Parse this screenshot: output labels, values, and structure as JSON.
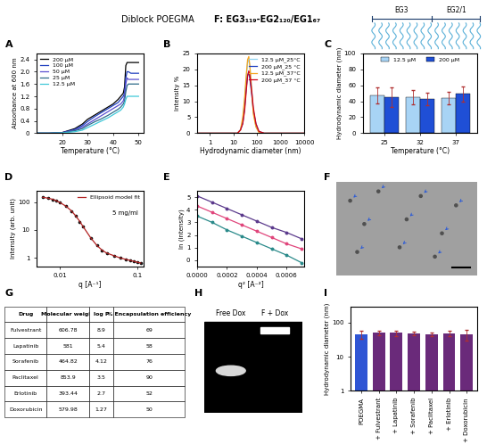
{
  "header": {
    "title": "Diblock POEGMA",
    "polymer": "F: EG3₁₁₉-EG2₁₂₀/EG1₆₇",
    "schematic_labels": [
      "EG3",
      "EG2/1"
    ]
  },
  "chart_data": [
    {
      "panel": "A",
      "type": "line",
      "x_label": "Temperature (°C)",
      "y_label": "Absorbance at 600 nm",
      "x": [
        10,
        15,
        20,
        25,
        28,
        30,
        33,
        35,
        38,
        40,
        42,
        43,
        44,
        44.5,
        45,
        45.5,
        46,
        47,
        48,
        50
      ],
      "series": [
        {
          "name": "200 µM",
          "color": "#000000",
          "line_style": "solid",
          "values": [
            0,
            0,
            0.02,
            0.15,
            0.3,
            0.45,
            0.6,
            0.7,
            0.85,
            0.95,
            1.1,
            1.2,
            1.3,
            1.5,
            2.2,
            2.3,
            2.3,
            2.3,
            2.3,
            2.3
          ]
        },
        {
          "name": "100 µM",
          "color": "#1f3fbf",
          "line_style": "solid",
          "values": [
            0,
            0,
            0.02,
            0.12,
            0.25,
            0.38,
            0.55,
            0.65,
            0.8,
            0.9,
            1.0,
            1.1,
            1.2,
            1.3,
            1.8,
            2.0,
            2.0,
            1.95,
            1.95,
            1.95
          ]
        },
        {
          "name": "50 µM",
          "color": "#5a4fd0",
          "line_style": "solid",
          "values": [
            0,
            0,
            0.01,
            0.1,
            0.2,
            0.3,
            0.45,
            0.55,
            0.7,
            0.8,
            0.9,
            0.95,
            1.05,
            1.2,
            1.6,
            1.8,
            1.75,
            1.75,
            1.75,
            1.75
          ]
        },
        {
          "name": "25 µM",
          "color": "#2e6b8a",
          "line_style": "solid",
          "values": [
            0,
            0,
            0.01,
            0.08,
            0.15,
            0.25,
            0.38,
            0.45,
            0.58,
            0.68,
            0.78,
            0.85,
            0.95,
            1.05,
            1.35,
            1.55,
            1.6,
            1.6,
            1.6,
            1.6
          ]
        },
        {
          "name": "12.5 µM",
          "color": "#40c8d8",
          "line_style": "solid",
          "values": [
            0,
            0,
            0.01,
            0.05,
            0.1,
            0.18,
            0.3,
            0.38,
            0.5,
            0.6,
            0.7,
            0.75,
            0.85,
            0.95,
            1.1,
            1.2,
            1.2,
            1.2,
            1.2,
            1.2
          ]
        }
      ],
      "xlim": [
        10,
        52
      ],
      "ylim": [
        0,
        2.6
      ],
      "xticks": [
        20,
        30,
        40,
        50
      ],
      "yticks": [
        0,
        0.4,
        0.8,
        1.2,
        1.6,
        2.0,
        2.4
      ],
      "legend": "upper left"
    },
    {
      "panel": "B",
      "type": "line",
      "log": "x",
      "x_label": "Hydrodynamic diameter (nm)",
      "y_label": "Intensity %",
      "x": [
        0.3,
        5,
        15,
        20,
        25,
        30,
        35,
        40,
        45,
        50,
        60,
        70,
        90,
        120,
        200,
        10000
      ],
      "series": [
        {
          "name": "12.5 µM_25°C",
          "color": "#8fd3f0",
          "values": [
            0,
            0,
            0,
            1,
            4,
            10,
            17,
            22,
            23,
            21,
            14,
            7,
            2,
            0.3,
            0,
            0
          ]
        },
        {
          "name": "200 µM_25 °C",
          "color": "#1f3fbf",
          "values": [
            0,
            0,
            0,
            1,
            3,
            8,
            14,
            18,
            19,
            17,
            12,
            7,
            3,
            0.5,
            0,
            0
          ]
        },
        {
          "name": "12.5 µM_37°C",
          "color": "#f5a623",
          "values": [
            0,
            0,
            0,
            1,
            5,
            11,
            18,
            23,
            24,
            21,
            13,
            6,
            2,
            0.2,
            0,
            0
          ]
        },
        {
          "name": "200 µM_37 °C",
          "color": "#d0021b",
          "values": [
            0,
            0,
            0,
            1,
            3,
            7,
            13,
            18,
            19.5,
            18,
            13,
            8,
            3,
            0.6,
            0,
            0
          ]
        }
      ],
      "xlim": [
        0.3,
        10000
      ],
      "ylim": [
        0,
        25
      ],
      "xticks": [
        1,
        10,
        100,
        1000,
        10000
      ],
      "yticks": [
        0,
        5,
        10,
        15,
        20,
        25
      ],
      "legend": "upper right"
    },
    {
      "panel": "C",
      "type": "bar",
      "x_label": "Temperature (°C)",
      "y_label": "Hydrodynamic diameter (nm)",
      "categories": [
        "25",
        "32",
        "37"
      ],
      "series": [
        {
          "name": "12.5 µM",
          "color": "#a8d4f5",
          "values": [
            47,
            45,
            44
          ],
          "errors": [
            10,
            9,
            8
          ]
        },
        {
          "name": "200 µM",
          "color": "#1f4fd6",
          "values": [
            45,
            43,
            49
          ],
          "errors": [
            12,
            8,
            10
          ]
        }
      ],
      "ylim": [
        0,
        100
      ],
      "yticks": [
        0,
        20,
        40,
        60,
        80,
        100
      ],
      "legend": "upper center"
    },
    {
      "panel": "D",
      "type": "line",
      "log": true,
      "x_label": "q [A⁻¹]",
      "y_label": "Intensity (arb. unit)",
      "annotation": "5 mg/ml",
      "x": [
        0.006,
        0.007,
        0.008,
        0.009,
        0.01,
        0.012,
        0.014,
        0.016,
        0.018,
        0.02,
        0.025,
        0.03,
        0.035,
        0.04,
        0.05,
        0.06,
        0.07,
        0.08,
        0.09,
        0.1,
        0.11
      ],
      "series": [
        {
          "type": "scatter",
          "color": "#111111",
          "marker": "o",
          "values": [
            150,
            140,
            125,
            110,
            95,
            70,
            48,
            32,
            20,
            13,
            5,
            2.8,
            1.9,
            1.5,
            1.2,
            1.0,
            0.9,
            0.8,
            0.75,
            0.7,
            0.65
          ]
        },
        {
          "name": "Ellipsoid model fit",
          "type": "line",
          "color": "#b22222",
          "values": [
            148,
            138,
            126,
            112,
            96,
            71,
            49,
            32,
            20.5,
            13,
            5.2,
            2.8,
            1.9,
            1.5,
            1.2,
            1.0,
            0.9,
            0.82,
            0.76,
            0.7,
            0.66
          ]
        }
      ],
      "xlim": [
        0.005,
        0.12
      ],
      "ylim": [
        0.5,
        250
      ],
      "xticks": [
        0.01,
        0.1
      ],
      "yticks": [
        1,
        10,
        100
      ],
      "legend": "upper right"
    },
    {
      "panel": "E",
      "type": "line",
      "x_label": "q² [A⁻²]",
      "y_label": "ln (intensity)",
      "x": [
        0,
        0.0001,
        0.0002,
        0.0003,
        0.0004,
        0.0005,
        0.0006,
        0.0007
      ],
      "series": [
        {
          "color": "#5b3a8c",
          "marker": "o",
          "values": [
            5.1,
            4.6,
            4.1,
            3.6,
            3.1,
            2.6,
            2.2,
            1.7
          ]
        },
        {
          "color": "#e0457b",
          "marker": "o",
          "values": [
            4.3,
            3.8,
            3.3,
            2.8,
            2.3,
            1.8,
            1.3,
            0.9
          ]
        },
        {
          "color": "#2a8a8a",
          "marker": "o",
          "values": [
            3.5,
            3.0,
            2.4,
            1.9,
            1.4,
            0.9,
            0.4,
            -0.2
          ]
        }
      ],
      "xlim": [
        0,
        0.00072
      ],
      "ylim": [
        -0.5,
        5.5
      ],
      "xticks": [
        {
          "value": 0,
          "label": "0.0000"
        },
        {
          "value": 0.0002,
          "label": "0.0002"
        },
        {
          "value": 0.0004,
          "label": "0.0004"
        },
        {
          "value": 0.0006,
          "label": "0.0006"
        }
      ],
      "yticks": [
        0,
        1,
        2,
        3,
        4,
        5
      ]
    },
    {
      "panel": "I",
      "type": "bar",
      "log": "y",
      "y_label": "Hydrodynamic diameter (nm)",
      "categories": [
        "POEGMA",
        "+ Fulvestrant",
        "+ Lapatinib",
        "+ Sorafenib",
        "+ Paclitaxel",
        "+ Erlotinib",
        "+ Doxorubicin"
      ],
      "values": [
        45,
        50,
        50,
        48,
        45,
        48,
        45
      ],
      "errors": [
        12,
        8,
        9,
        6,
        5,
        8,
        15
      ],
      "colors": [
        "#2f55d4",
        "#6a2a7a",
        "#6a2a7a",
        "#6a2a7a",
        "#6a2a7a",
        "#6a2a7a",
        "#6a2a7a"
      ],
      "ylim": [
        1,
        300
      ],
      "yticks": [
        1,
        10,
        100
      ]
    }
  ],
  "image_panels": [
    {
      "panel": "F",
      "type": "micrograph"
    },
    {
      "panel": "H",
      "type": "gel",
      "lanes": [
        "Free Dox",
        "F + Dox"
      ]
    }
  ],
  "table": {
    "panel": "G",
    "columns": [
      "Drug",
      "Molecular weight",
      "log P",
      "% Encapsulation efficiency"
    ],
    "rows": [
      [
        "Fulvestrant",
        "606.78",
        "8.9",
        "69"
      ],
      [
        "Lapatinib",
        "581",
        "5.4",
        "58"
      ],
      [
        "Sorafenib",
        "464.82",
        "4.12",
        "76"
      ],
      [
        "Paclitaxel",
        "853.9",
        "3.5",
        "90"
      ],
      [
        "Erlotinib",
        "393.44",
        "2.7",
        "52"
      ],
      [
        "Doxorubicin",
        "579.98",
        "1.27",
        "50"
      ]
    ]
  }
}
